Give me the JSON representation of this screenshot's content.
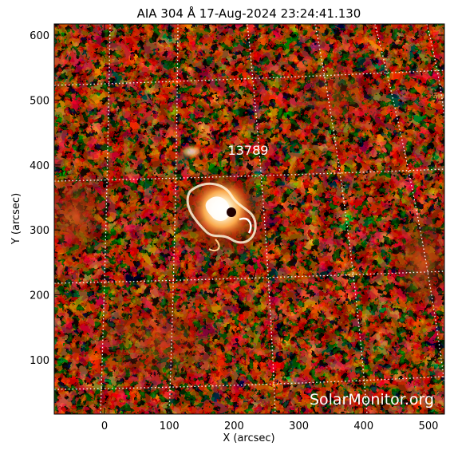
{
  "title": "AIA 304 Å 17-Aug-2024 23:24:41.130",
  "xlabel": "X (arcsec)",
  "ylabel": "Y (arcsec)",
  "watermark": "SolarMonitor.org",
  "region_label": "13789",
  "colors": {
    "frame": "#000000",
    "grid": "#ffffff",
    "background": "#000000"
  },
  "x_ticks": [
    "0",
    "100",
    "200",
    "300",
    "400",
    "500"
  ],
  "y_ticks": [
    "100",
    "200",
    "300",
    "400",
    "500",
    "600"
  ]
}
